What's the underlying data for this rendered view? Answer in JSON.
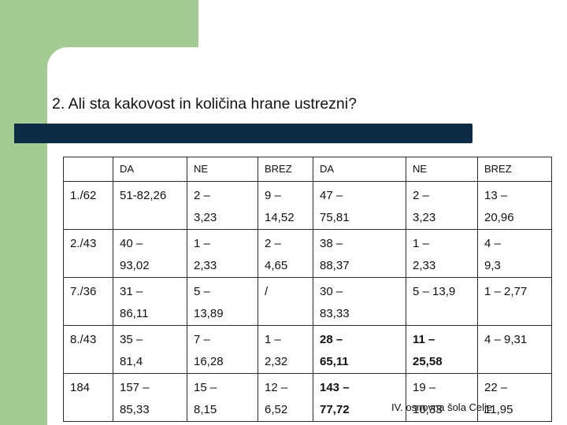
{
  "title": "2. Ali sta kakovost in količina hrane ustrezni?",
  "table": {
    "headers": [
      "",
      "DA",
      "NE",
      "BREZ",
      "DA",
      "NE",
      "BREZ"
    ],
    "rows": [
      [
        "1./62",
        "51-82,26",
        "2 –\n3,23",
        "9 –\n14,52",
        "47 –\n75,81",
        "2 –\n3,23",
        "13 –\n20,96"
      ],
      [
        "2./43",
        "40 –\n93,02",
        "1 –\n2,33",
        "2 –\n4,65",
        "38 –\n88,37",
        "1 –\n2,33",
        "4 –\n9,3"
      ],
      [
        "7./36",
        "31 –\n86,11",
        "5 –\n13,89",
        "/",
        "30 –\n83,33",
        "5 – 13,9",
        "1 – 2,77"
      ],
      [
        "8./43",
        "35 –\n81,4",
        "7 –\n16,28",
        "1 –\n2,32",
        "28 –\n65,11",
        "11 –\n25,58",
        "4 – 9,31"
      ],
      [
        "184",
        "157 –\n85,33",
        "15 –\n8,15",
        "12 –\n6,52",
        "143 –\n77,72",
        "19 –\n10,33",
        "22 –\n11,95"
      ]
    ],
    "bold_cells": [
      [
        3,
        4
      ],
      [
        3,
        5
      ],
      [
        4,
        4
      ]
    ]
  },
  "footer": "IV. osnovna šola Celje",
  "colors": {
    "green": "#a3cc95",
    "bar": "#0c2b44"
  }
}
